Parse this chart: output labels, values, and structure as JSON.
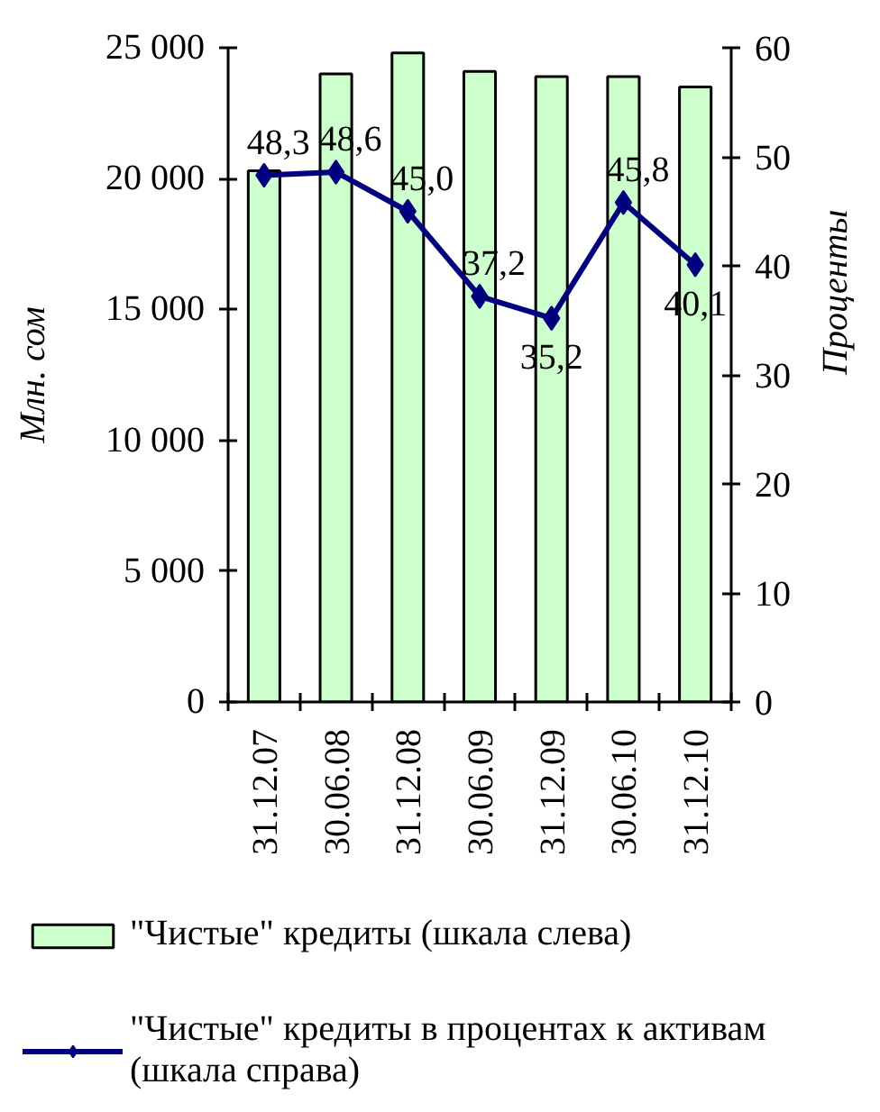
{
  "chart_data": {
    "type": "bar",
    "categories": [
      "31.12.07",
      "30.06.08",
      "31.12.08",
      "30.06.09",
      "31.12.09",
      "30.06.10",
      "31.12.10"
    ],
    "ylabel": "Млн. сом",
    "y2label": "Проценты",
    "ylim": [
      0,
      25000
    ],
    "yticks": [
      0,
      {
        "value": 5000,
        "label": "5 000"
      },
      {
        "value": 10000,
        "label": "10 000"
      },
      {
        "value": 15000,
        "label": "15 000"
      },
      {
        "value": 20000,
        "label": "20 000"
      },
      {
        "value": 25000,
        "label": "25 000"
      }
    ],
    "y2lim": [
      0,
      60
    ],
    "y2ticks": [
      0,
      10,
      20,
      30,
      40,
      50,
      60
    ],
    "series": [
      {
        "name": "\"Чистые\" кредиты (шкала слева)",
        "color": "#ccffcc",
        "values": [
          20300,
          24000,
          24800,
          24100,
          23900,
          23900,
          23500
        ]
      },
      {
        "name": "\"Чистые\" кредиты в процентах к активам (шкала справа)",
        "type": "line",
        "axis": "y2",
        "color": "#000080",
        "marker": "diamond",
        "values": [
          48.3,
          48.6,
          45.0,
          37.2,
          35.2,
          45.8,
          40.1
        ],
        "value_labels": [
          "48,3",
          "48,6",
          "45,0",
          "37,2",
          "35,2",
          "45,8",
          "40,1"
        ]
      }
    ],
    "legend": "bottom"
  }
}
